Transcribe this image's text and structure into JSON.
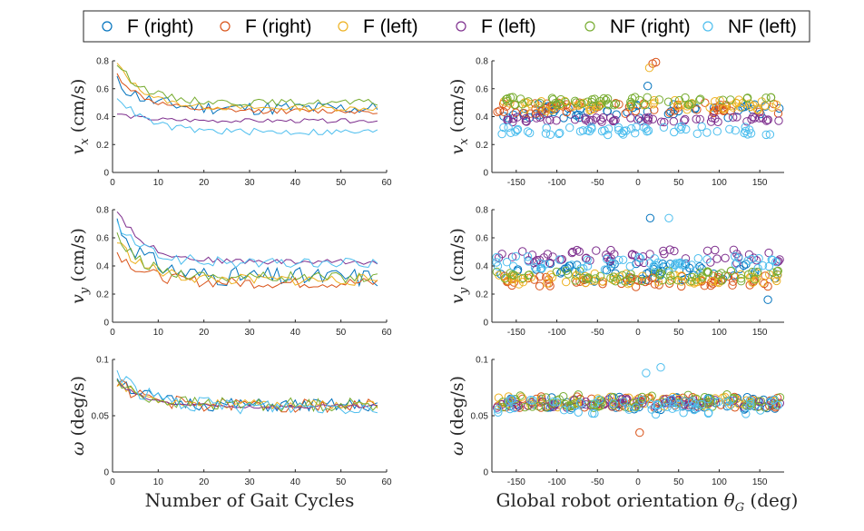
{
  "figure": {
    "legend": [
      {
        "label": "F (right)",
        "color": "#0072BD"
      },
      {
        "label": "F (right)",
        "color": "#D95319"
      },
      {
        "label": "F (left)",
        "color": "#EDB120"
      },
      {
        "label": "F (left)",
        "color": "#7E2F8E"
      },
      {
        "label": "NF (right)",
        "color": "#77AC30"
      },
      {
        "label": "NF (left)",
        "color": "#4DBEEE"
      }
    ]
  },
  "chart_data": [
    {
      "type": "line",
      "row": "vx",
      "column": "gait",
      "ylabel_sym": "v",
      "ylabel_sub": "x",
      "ylabel_unit": " (cm/s)",
      "xlabel": "",
      "xlim": [
        0,
        60
      ],
      "ylim": [
        0,
        0.8
      ],
      "xticks": [
        0,
        10,
        20,
        30,
        40,
        50,
        60
      ],
      "yticks": [
        0,
        0.2,
        0.4,
        0.6,
        0.8
      ],
      "ytick_labels": [
        "0",
        "0.2",
        "0.4",
        "0.6",
        "0.8"
      ],
      "series": [
        {
          "color": "#0072BD",
          "start": 0.65,
          "mean": 0.46,
          "noise": 0.05,
          "seed": 11
        },
        {
          "color": "#D95319",
          "start": 0.7,
          "mean": 0.44,
          "noise": 0.02,
          "seed": 12
        },
        {
          "color": "#EDB120",
          "start": 0.78,
          "mean": 0.46,
          "noise": 0.02,
          "seed": 13
        },
        {
          "color": "#7E2F8E",
          "start": 0.42,
          "mean": 0.37,
          "noise": 0.015,
          "seed": 14
        },
        {
          "color": "#77AC30",
          "start": 0.78,
          "mean": 0.5,
          "noise": 0.025,
          "seed": 15
        },
        {
          "color": "#4DBEEE",
          "start": 0.55,
          "mean": 0.29,
          "noise": 0.025,
          "seed": 16
        }
      ]
    },
    {
      "type": "scatter",
      "row": "vx",
      "column": "orient",
      "ylabel_sym": "v",
      "ylabel_sub": "x",
      "ylabel_unit": " (cm/s)",
      "xlabel": "",
      "xlim": [
        -180,
        180
      ],
      "ylim": [
        0,
        0.8
      ],
      "xticks": [
        -150,
        -100,
        -50,
        0,
        50,
        100,
        150
      ],
      "yticks": [
        0,
        0.2,
        0.4,
        0.6,
        0.8
      ],
      "ytick_labels": [
        "0",
        "0.2",
        "0.4",
        "0.6",
        "0.8"
      ],
      "series": [
        {
          "color": "#0072BD",
          "mean": 0.44,
          "noise": 0.05,
          "n": 58,
          "seed": 21
        },
        {
          "color": "#D95319",
          "mean": 0.46,
          "noise": 0.04,
          "n": 58,
          "seed": 22
        },
        {
          "color": "#EDB120",
          "mean": 0.48,
          "noise": 0.04,
          "n": 58,
          "seed": 23
        },
        {
          "color": "#7E2F8E",
          "mean": 0.38,
          "noise": 0.02,
          "n": 58,
          "seed": 24
        },
        {
          "color": "#77AC30",
          "mean": 0.51,
          "noise": 0.03,
          "n": 58,
          "seed": 25
        },
        {
          "color": "#4DBEEE",
          "mean": 0.3,
          "noise": 0.03,
          "n": 58,
          "seed": 26
        }
      ],
      "extra_points": [
        {
          "x": 18,
          "y": 0.78,
          "color": "#D95319"
        },
        {
          "x": 22,
          "y": 0.79,
          "color": "#D95319"
        },
        {
          "x": 14,
          "y": 0.75,
          "color": "#EDB120"
        },
        {
          "x": 12,
          "y": 0.62,
          "color": "#0072BD"
        }
      ]
    },
    {
      "type": "line",
      "row": "vy",
      "column": "gait",
      "ylabel_sym": "v",
      "ylabel_sub": "y",
      "ylabel_unit": " (cm/s)",
      "xlabel": "",
      "xlim": [
        0,
        60
      ],
      "ylim": [
        0,
        0.8
      ],
      "xticks": [
        0,
        10,
        20,
        30,
        40,
        50,
        60
      ],
      "yticks": [
        0,
        0.2,
        0.4,
        0.6,
        0.8
      ],
      "ytick_labels": [
        "0",
        "0.2",
        "0.4",
        "0.6",
        "0.8"
      ],
      "series": [
        {
          "color": "#0072BD",
          "start": 0.72,
          "mean": 0.32,
          "noise": 0.07,
          "seed": 31
        },
        {
          "color": "#D95319",
          "start": 0.5,
          "mean": 0.28,
          "noise": 0.04,
          "seed": 32
        },
        {
          "color": "#EDB120",
          "start": 0.58,
          "mean": 0.3,
          "noise": 0.04,
          "seed": 33
        },
        {
          "color": "#7E2F8E",
          "start": 0.8,
          "mean": 0.43,
          "noise": 0.02,
          "seed": 34
        },
        {
          "color": "#77AC30",
          "start": 0.6,
          "mean": 0.32,
          "noise": 0.04,
          "seed": 35
        },
        {
          "color": "#4DBEEE",
          "start": 0.7,
          "mean": 0.42,
          "noise": 0.04,
          "seed": 36
        }
      ]
    },
    {
      "type": "scatter",
      "row": "vy",
      "column": "orient",
      "ylabel_sym": "v",
      "ylabel_sub": "y",
      "ylabel_unit": " (cm/s)",
      "xlabel": "",
      "xlim": [
        -180,
        180
      ],
      "ylim": [
        0,
        0.8
      ],
      "xticks": [
        -150,
        -100,
        -50,
        0,
        50,
        100,
        150
      ],
      "yticks": [
        0,
        0.2,
        0.4,
        0.6,
        0.8
      ],
      "ytick_labels": [
        "0",
        "0.2",
        "0.4",
        "0.6",
        "0.8"
      ],
      "series": [
        {
          "color": "#0072BD",
          "mean": 0.36,
          "noise": 0.07,
          "n": 58,
          "seed": 41
        },
        {
          "color": "#D95319",
          "mean": 0.29,
          "noise": 0.04,
          "n": 58,
          "seed": 42
        },
        {
          "color": "#EDB120",
          "mean": 0.31,
          "noise": 0.04,
          "n": 58,
          "seed": 43
        },
        {
          "color": "#7E2F8E",
          "mean": 0.47,
          "noise": 0.05,
          "n": 58,
          "seed": 44
        },
        {
          "color": "#77AC30",
          "mean": 0.33,
          "noise": 0.04,
          "n": 58,
          "seed": 45
        },
        {
          "color": "#4DBEEE",
          "mean": 0.42,
          "noise": 0.05,
          "n": 58,
          "seed": 46
        }
      ],
      "extra_points": [
        {
          "x": 15,
          "y": 0.74,
          "color": "#0072BD"
        },
        {
          "x": 38,
          "y": 0.74,
          "color": "#4DBEEE"
        },
        {
          "x": 160,
          "y": 0.16,
          "color": "#0072BD"
        }
      ]
    },
    {
      "type": "line",
      "row": "omega",
      "column": "gait",
      "ylabel_sym": "ω",
      "ylabel_sub": "",
      "ylabel_unit": " (deg/s)",
      "xlabel": "Number of Gait Cycles",
      "xlim": [
        0,
        60
      ],
      "ylim": [
        0,
        0.1
      ],
      "xticks": [
        0,
        10,
        20,
        30,
        40,
        50,
        60
      ],
      "yticks": [
        0,
        0.05,
        0.1
      ],
      "ytick_labels": [
        "0",
        "0.05",
        "0.1"
      ],
      "series": [
        {
          "color": "#0072BD",
          "start": 0.085,
          "mean": 0.059,
          "noise": 0.006,
          "seed": 51
        },
        {
          "color": "#D95319",
          "start": 0.08,
          "mean": 0.059,
          "noise": 0.006,
          "seed": 52
        },
        {
          "color": "#EDB120",
          "start": 0.08,
          "mean": 0.06,
          "noise": 0.004,
          "seed": 53
        },
        {
          "color": "#7E2F8E",
          "start": 0.08,
          "mean": 0.058,
          "noise": 0.002,
          "seed": 54
        },
        {
          "color": "#77AC30",
          "start": 0.08,
          "mean": 0.06,
          "noise": 0.006,
          "seed": 55
        },
        {
          "color": "#4DBEEE",
          "start": 0.09,
          "mean": 0.058,
          "noise": 0.007,
          "seed": 56
        }
      ]
    },
    {
      "type": "scatter",
      "row": "omega",
      "column": "orient",
      "ylabel_sym": "ω",
      "ylabel_sub": "",
      "ylabel_unit": " (deg/s)",
      "xlabel_prefix": "Global robot orientation ",
      "xlabel_sym": "θ",
      "xlabel_sub": "G",
      "xlabel_unit": " (deg)",
      "xlim": [
        -180,
        180
      ],
      "ylim": [
        0,
        0.1
      ],
      "xticks": [
        -150,
        -100,
        -50,
        0,
        50,
        100,
        150
      ],
      "yticks": [
        0,
        0.05,
        0.1
      ],
      "ytick_labels": [
        "0",
        "0.05",
        "0.1"
      ],
      "series": [
        {
          "color": "#0072BD",
          "mean": 0.061,
          "noise": 0.006,
          "n": 58,
          "seed": 61
        },
        {
          "color": "#D95319",
          "mean": 0.062,
          "noise": 0.005,
          "n": 58,
          "seed": 62
        },
        {
          "color": "#EDB120",
          "mean": 0.062,
          "noise": 0.005,
          "n": 58,
          "seed": 63
        },
        {
          "color": "#7E2F8E",
          "mean": 0.061,
          "noise": 0.004,
          "n": 58,
          "seed": 64
        },
        {
          "color": "#77AC30",
          "mean": 0.063,
          "noise": 0.006,
          "n": 58,
          "seed": 65
        },
        {
          "color": "#4DBEEE",
          "mean": 0.058,
          "noise": 0.007,
          "n": 58,
          "seed": 66
        }
      ],
      "extra_points": [
        {
          "x": 2,
          "y": 0.035,
          "color": "#D95319"
        },
        {
          "x": 28,
          "y": 0.093,
          "color": "#4DBEEE"
        },
        {
          "x": 10,
          "y": 0.088,
          "color": "#4DBEEE"
        }
      ]
    }
  ]
}
